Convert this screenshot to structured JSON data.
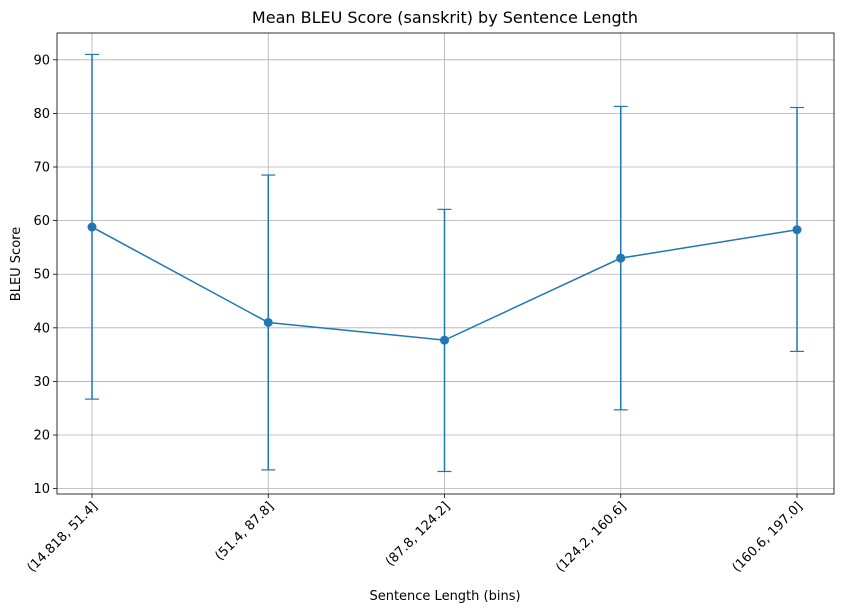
{
  "chart_data": {
    "type": "line",
    "title": "Mean BLEU Score (sanskrit) by Sentence Length",
    "xlabel": "Sentence Length (bins)",
    "ylabel": "BLEU Score",
    "categories": [
      "(14.818, 51.4]",
      "(51.4, 87.8]",
      "(87.8, 124.2]",
      "(124.2, 160.6]",
      "(160.6, 197.0]"
    ],
    "series": [
      {
        "values": [
          58.8,
          41.0,
          37.7,
          53.0,
          58.3
        ],
        "error_low": [
          26.7,
          13.5,
          13.2,
          24.7,
          35.6
        ],
        "error_high": [
          91.0,
          68.5,
          62.1,
          81.3,
          81.1
        ],
        "color": "#1f77b4"
      }
    ],
    "yticks": [
      10,
      20,
      30,
      40,
      50,
      60,
      70,
      80,
      90
    ],
    "ylim": [
      9,
      95
    ],
    "grid": true,
    "x_tick_rotation": "45 degrees"
  }
}
